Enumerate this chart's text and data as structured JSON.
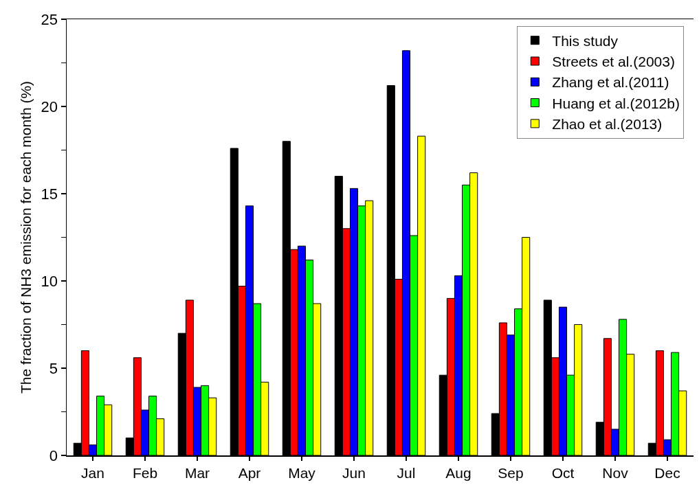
{
  "chart_data": {
    "type": "bar",
    "ylabel": "The fraction of NH3 emission for each month (%)",
    "categories": [
      "Jan",
      "Feb",
      "Mar",
      "Apr",
      "May",
      "Jun",
      "Jul",
      "Aug",
      "Sep",
      "Oct",
      "Nov",
      "Dec"
    ],
    "series": [
      {
        "name": "This study",
        "color": "#000000",
        "values": [
          0.7,
          1.0,
          7.0,
          17.6,
          18.0,
          16.0,
          21.2,
          4.6,
          2.4,
          8.9,
          1.9,
          0.7
        ]
      },
      {
        "name": "Streets et al.(2003)",
        "color": "#ff0000",
        "values": [
          6.0,
          5.6,
          8.9,
          9.7,
          11.8,
          13.0,
          10.1,
          9.0,
          7.6,
          5.6,
          6.7,
          6.0
        ]
      },
      {
        "name": "Zhang et al.(2011)",
        "color": "#0000ff",
        "values": [
          0.6,
          2.6,
          3.9,
          14.3,
          12.0,
          15.3,
          23.2,
          10.3,
          6.9,
          8.5,
          1.5,
          0.9
        ]
      },
      {
        "name": "Huang et al.(2012b)",
        "color": "#00ff00",
        "values": [
          3.4,
          3.4,
          4.0,
          8.7,
          11.2,
          14.3,
          12.6,
          15.5,
          8.4,
          4.6,
          7.8,
          5.9
        ]
      },
      {
        "name": "Zhao et al.(2013)",
        "color": "#ffff00",
        "values": [
          2.9,
          2.1,
          3.3,
          4.2,
          8.7,
          14.6,
          18.3,
          16.2,
          12.5,
          7.5,
          5.8,
          3.7
        ]
      }
    ],
    "ylim": [
      0,
      25
    ],
    "yticks": [
      0,
      {
        "value": 2.5,
        "label": null
      },
      5,
      {
        "value": 7.5,
        "label": null
      },
      10,
      {
        "value": 12.5,
        "label": null
      },
      15,
      {
        "value": 17.5,
        "label": null
      },
      20,
      {
        "value": 22.5,
        "label": null
      },
      25
    ],
    "grid": false,
    "legend": "top right"
  }
}
